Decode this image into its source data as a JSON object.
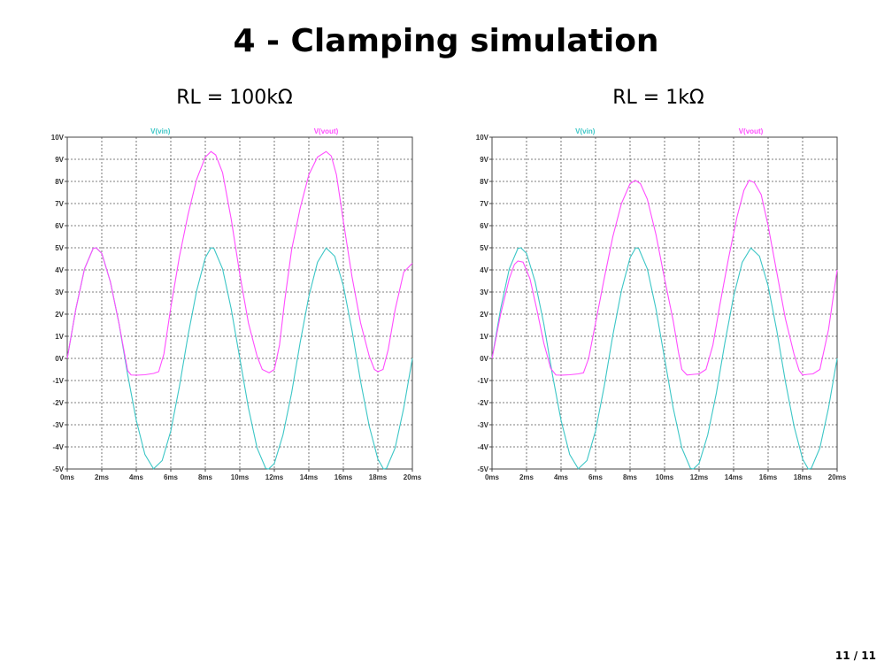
{
  "slide": {
    "title": "4 - Clamping simulation",
    "page_number": "11 / 11"
  },
  "colors": {
    "vin": "#3cc6c6",
    "vout": "#ff4dff",
    "grid": "#555555",
    "axis": "#444444"
  },
  "chart_data": [
    {
      "type": "line",
      "title": "RL = 100kΩ",
      "xlabel": "",
      "ylabel": "",
      "xlim": [
        0,
        20
      ],
      "ylim": [
        -5,
        10
      ],
      "x_unit": "ms",
      "y_unit": "V",
      "x_ticks": [
        "0ms",
        "2ms",
        "4ms",
        "6ms",
        "8ms",
        "10ms",
        "12ms",
        "14ms",
        "16ms",
        "18ms",
        "20ms"
      ],
      "y_ticks": [
        "10V",
        "9V",
        "8V",
        "7V",
        "6V",
        "5V",
        "4V",
        "3V",
        "2V",
        "1V",
        "0V",
        "-1V",
        "-2V",
        "-3V",
        "-4V",
        "-5V"
      ],
      "grid": true,
      "series": [
        {
          "name": "V(vin)",
          "color": "#3cc6c6",
          "x": [
            0,
            0.5,
            1,
            1.5,
            1.67,
            2,
            2.5,
            3,
            3.5,
            4,
            4.5,
            5,
            5.5,
            6,
            6.5,
            7,
            7.5,
            8,
            8.33,
            8.5,
            9,
            9.5,
            10,
            10.5,
            11,
            11.5,
            11.67,
            12,
            12.5,
            13,
            13.5,
            14,
            14.5,
            15,
            15.5,
            16,
            16.5,
            17,
            17.5,
            18,
            18.33,
            18.5,
            19,
            19.5,
            20
          ],
          "y": [
            0,
            2.24,
            4.05,
            4.97,
            5.0,
            4.75,
            3.46,
            1.57,
            -0.73,
            -2.8,
            -4.34,
            -4.99,
            -4.62,
            -3.28,
            -1.27,
            1.04,
            3.06,
            4.55,
            5.0,
            4.97,
            4.05,
            2.24,
            0,
            -2.24,
            -4.05,
            -4.97,
            -5.0,
            -4.75,
            -3.46,
            -1.57,
            0.73,
            2.8,
            4.34,
            4.99,
            4.62,
            3.28,
            1.27,
            -1.04,
            -3.06,
            -4.55,
            -5.0,
            -4.97,
            -4.05,
            -2.24,
            0
          ]
        },
        {
          "name": "V(vout)",
          "color": "#ff4dff",
          "x": [
            0,
            0.5,
            1,
            1.5,
            1.67,
            2,
            2.5,
            3,
            3.5,
            3.7,
            4,
            4.5,
            5,
            5.3,
            5.6,
            6,
            6.5,
            7,
            7.5,
            8,
            8.33,
            8.6,
            9,
            9.5,
            10,
            10.5,
            11,
            11.3,
            11.7,
            12,
            12.3,
            12.6,
            13,
            13.5,
            14,
            14.5,
            15,
            15.3,
            15.6,
            16,
            16.5,
            17,
            17.5,
            17.8,
            18,
            18.3,
            18.6,
            19,
            19.5,
            20
          ],
          "y": [
            0,
            2.24,
            4.05,
            4.97,
            5.0,
            4.75,
            3.46,
            1.57,
            -0.55,
            -0.75,
            -0.76,
            -0.74,
            -0.68,
            -0.6,
            0.2,
            2.3,
            4.6,
            6.5,
            8.1,
            9.1,
            9.35,
            9.2,
            8.4,
            6.3,
            3.8,
            1.6,
            0.1,
            -0.5,
            -0.65,
            -0.5,
            0.6,
            2.6,
            4.9,
            6.8,
            8.3,
            9.1,
            9.35,
            9.15,
            8.3,
            6.2,
            3.7,
            1.6,
            0.1,
            -0.5,
            -0.6,
            -0.5,
            0.4,
            2.2,
            3.9,
            4.3
          ]
        }
      ]
    },
    {
      "type": "line",
      "title": "RL = 1kΩ",
      "xlabel": "",
      "ylabel": "",
      "xlim": [
        0,
        20
      ],
      "ylim": [
        -5,
        10
      ],
      "x_unit": "ms",
      "y_unit": "V",
      "x_ticks": [
        "0ms",
        "2ms",
        "4ms",
        "6ms",
        "8ms",
        "10ms",
        "12ms",
        "14ms",
        "16ms",
        "18ms",
        "20ms"
      ],
      "y_ticks": [
        "10V",
        "9V",
        "8V",
        "7V",
        "6V",
        "5V",
        "4V",
        "3V",
        "2V",
        "1V",
        "0V",
        "-1V",
        "-2V",
        "-3V",
        "-4V",
        "-5V"
      ],
      "grid": true,
      "series": [
        {
          "name": "V(vin)",
          "color": "#3cc6c6",
          "x": [
            0,
            0.5,
            1,
            1.5,
            1.67,
            2,
            2.5,
            3,
            3.5,
            4,
            4.5,
            5,
            5.5,
            6,
            6.5,
            7,
            7.5,
            8,
            8.33,
            8.5,
            9,
            9.5,
            10,
            10.5,
            11,
            11.5,
            11.67,
            12,
            12.5,
            13,
            13.5,
            14,
            14.5,
            15,
            15.5,
            16,
            16.5,
            17,
            17.5,
            18,
            18.33,
            18.5,
            19,
            19.5,
            20
          ],
          "y": [
            0,
            2.24,
            4.05,
            4.97,
            5.0,
            4.75,
            3.46,
            1.57,
            -0.73,
            -2.8,
            -4.34,
            -4.99,
            -4.62,
            -3.28,
            -1.27,
            1.04,
            3.06,
            4.55,
            5.0,
            4.97,
            4.05,
            2.24,
            0,
            -2.24,
            -4.05,
            -4.97,
            -5.0,
            -4.75,
            -3.46,
            -1.57,
            0.73,
            2.8,
            4.34,
            4.99,
            4.62,
            3.28,
            1.27,
            -1.04,
            -3.06,
            -4.55,
            -5.0,
            -4.97,
            -4.05,
            -2.24,
            0
          ]
        },
        {
          "name": "V(vout)",
          "color": "#ff4dff",
          "x": [
            0,
            0.5,
            1,
            1.3,
            1.5,
            1.8,
            2.2,
            2.6,
            3,
            3.4,
            3.7,
            4,
            4.5,
            5,
            5.3,
            5.6,
            6,
            6.5,
            7,
            7.5,
            8,
            8.3,
            8.6,
            9,
            9.5,
            10,
            10.5,
            10.8,
            11,
            11.3,
            11.7,
            12,
            12.4,
            12.8,
            13.2,
            13.7,
            14.2,
            14.6,
            14.9,
            15.2,
            15.6,
            16,
            16.5,
            17,
            17.5,
            17.8,
            18,
            18.3,
            18.6,
            19,
            19.5,
            20
          ],
          "y": [
            0,
            2.0,
            3.6,
            4.25,
            4.4,
            4.35,
            3.6,
            2.2,
            0.7,
            -0.45,
            -0.75,
            -0.76,
            -0.74,
            -0.7,
            -0.65,
            0.0,
            1.6,
            3.6,
            5.5,
            7.0,
            7.9,
            8.05,
            7.9,
            7.2,
            5.6,
            3.6,
            1.7,
            0.3,
            -0.5,
            -0.75,
            -0.72,
            -0.7,
            -0.5,
            0.6,
            2.4,
            4.5,
            6.4,
            7.6,
            8.05,
            7.95,
            7.4,
            6.0,
            3.9,
            1.8,
            0.2,
            -0.55,
            -0.75,
            -0.72,
            -0.7,
            -0.5,
            1.3,
            4.0
          ]
        }
      ]
    }
  ]
}
